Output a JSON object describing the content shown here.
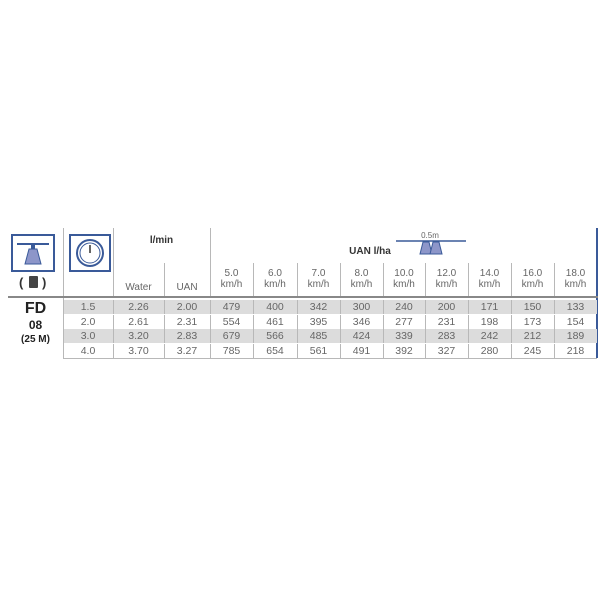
{
  "header": {
    "flow_label": "l/min",
    "water_label": "Water",
    "uan_label": "UAN",
    "rate_label": "UAN l/ha",
    "spacing_label": "0.5m",
    "speeds": [
      {
        "value": "5.0",
        "unit": "km/h"
      },
      {
        "value": "6.0",
        "unit": "km/h"
      },
      {
        "value": "7.0",
        "unit": "km/h"
      },
      {
        "value": "8.0",
        "unit": "km/h"
      },
      {
        "value": "10.0",
        "unit": "km/h"
      },
      {
        "value": "12.0",
        "unit": "km/h"
      },
      {
        "value": "14.0",
        "unit": "km/h"
      },
      {
        "value": "16.0",
        "unit": "km/h"
      },
      {
        "value": "18.0",
        "unit": "km/h"
      }
    ],
    "icons": [
      "nozzle-icon",
      "filter-icon",
      "pressure-gauge-icon",
      "double-nozzle-icon"
    ]
  },
  "nozzle": {
    "name": "FD",
    "size": "08",
    "mesh": "(25 M)"
  },
  "rows": [
    {
      "pressure": "1.5",
      "water": "2.26",
      "uan": "2.00",
      "rates": [
        "479",
        "400",
        "342",
        "300",
        "240",
        "200",
        "171",
        "150",
        "133"
      ]
    },
    {
      "pressure": "2.0",
      "water": "2.61",
      "uan": "2.31",
      "rates": [
        "554",
        "461",
        "395",
        "346",
        "277",
        "231",
        "198",
        "173",
        "154"
      ]
    },
    {
      "pressure": "3.0",
      "water": "3.20",
      "uan": "2.83",
      "rates": [
        "679",
        "566",
        "485",
        "424",
        "339",
        "283",
        "242",
        "212",
        "189"
      ]
    },
    {
      "pressure": "4.0",
      "water": "3.70",
      "uan": "3.27",
      "rates": [
        "785",
        "654",
        "561",
        "491",
        "392",
        "327",
        "280",
        "245",
        "218"
      ]
    }
  ],
  "colors": {
    "accent": "#3a5a99",
    "icon_fill": "#8d96c9",
    "row_shade": "#dcdcdc"
  }
}
